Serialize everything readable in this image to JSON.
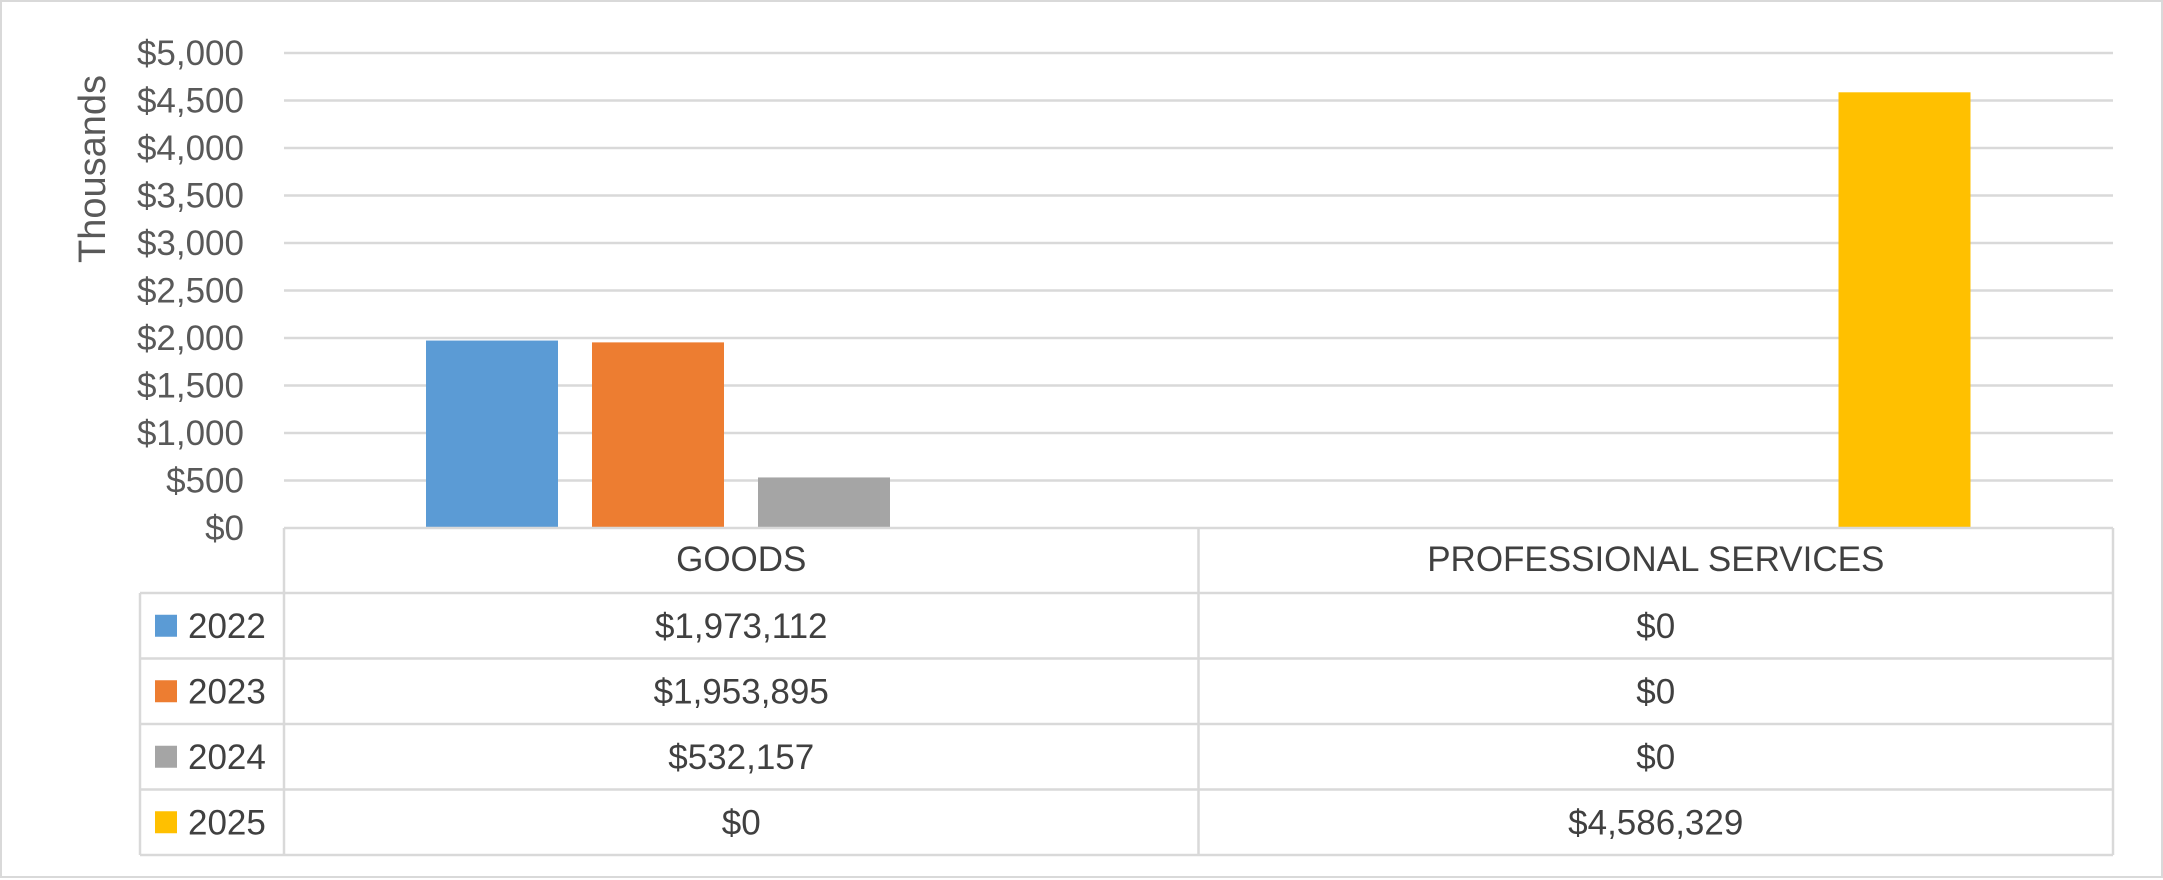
{
  "chart_data": {
    "type": "bar",
    "ylabel": "Thousands",
    "ylim": [
      0,
      5000
    ],
    "y_ticks": [
      "$0",
      "$500",
      "$1,000",
      "$1,500",
      "$2,000",
      "$2,500",
      "$3,000",
      "$3,500",
      "$4,000",
      "$4,500",
      "$5,000"
    ],
    "grid": true,
    "legend": "data-table",
    "categories": [
      "GOODS",
      "PROFESSIONAL SERVICES"
    ],
    "series": [
      {
        "name": "2022",
        "color": "#5b9bd5",
        "values": [
          1973.112,
          0
        ],
        "labels": [
          "$1,973,112",
          "$0"
        ]
      },
      {
        "name": "2023",
        "color": "#ed7d31",
        "values": [
          1953.895,
          0
        ],
        "labels": [
          "$1,953,895",
          "$0"
        ]
      },
      {
        "name": "2024",
        "color": "#a5a5a5",
        "values": [
          532.157,
          0
        ],
        "labels": [
          "$532,157",
          "$0"
        ]
      },
      {
        "name": "2025",
        "color": "#ffc000",
        "values": [
          0,
          4586.329
        ],
        "labels": [
          "$0",
          "$4,586,329"
        ]
      }
    ]
  }
}
